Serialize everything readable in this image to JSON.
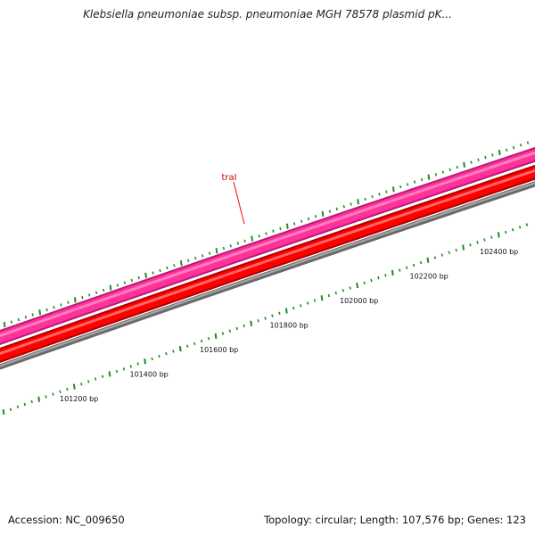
{
  "title": "Klebsiella pneumoniae subsp. pneumoniae MGH 78578 plasmid pK...",
  "footer": {
    "accession": "Accession: NC_009650",
    "summary": "Topology: circular; Length: 107,576 bp; Genes: 123"
  },
  "gene_label": {
    "text": "traI",
    "color": "#cc0000"
  },
  "ruler": {
    "unit": "bp",
    "labels": [
      "101200 bp",
      "101400 bp",
      "101600 bp",
      "101800 bp",
      "102000 bp",
      "102200 bp",
      "102400 bp"
    ]
  },
  "colors": {
    "feature_band": "#ff3399",
    "feature_band_edge": "#c0157a",
    "cds_band": "#ff0000",
    "cds_band_edge": "#b00000",
    "backbone": "#808080",
    "tick": "#228b22",
    "gene_label": "#cc0000"
  }
}
